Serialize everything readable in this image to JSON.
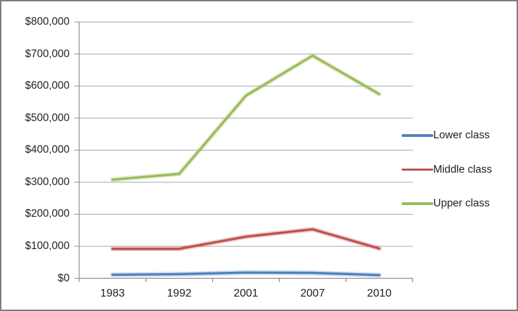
{
  "chart_data": {
    "type": "line",
    "title": "",
    "categories": [
      "1983",
      "1992",
      "2001",
      "2007",
      "2010"
    ],
    "series": [
      {
        "name": "Lower class",
        "color": "#4F81BD",
        "values": [
          11000,
          13000,
          18000,
          17000,
          10000
        ]
      },
      {
        "name": "Middle class",
        "color": "#C0504D",
        "values": [
          92000,
          92000,
          130000,
          153000,
          93000
        ]
      },
      {
        "name": "Upper class",
        "color": "#9BBB59",
        "values": [
          308000,
          326000,
          570000,
          695000,
          575000
        ]
      }
    ],
    "y_axis": {
      "min": 0,
      "max": 800000,
      "step": 100000,
      "tick_labels": [
        "$0",
        "$100,000",
        "$200,000",
        "$300,000",
        "$400,000",
        "$500,000",
        "$600,000",
        "$700,000",
        "$800,000"
      ]
    },
    "xlabel": "",
    "ylabel": "",
    "grid": true,
    "legend_position": "right"
  },
  "colors": {
    "background": "#FFFFFF",
    "border": "#7D7D7D",
    "gridline": "#A3A3A3",
    "axis": "#8C8C8C",
    "text": "#1F1F1F"
  }
}
